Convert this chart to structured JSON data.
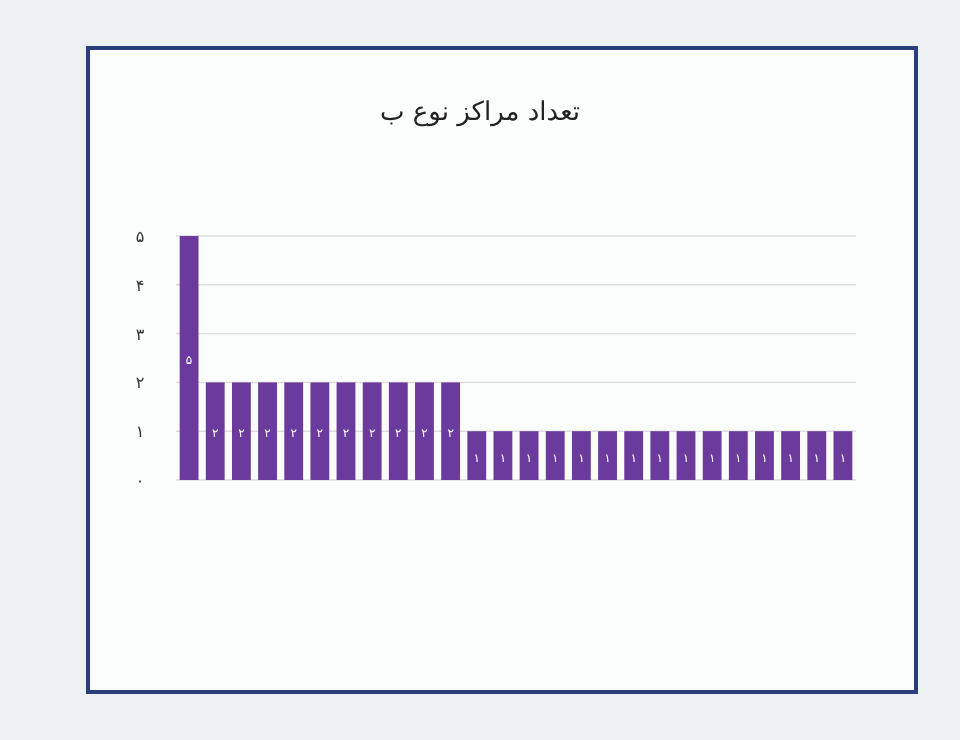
{
  "chart_data": {
    "type": "bar",
    "title": "تعداد مراکز نوع ب",
    "categories": [
      null,
      null,
      null,
      null,
      null,
      null,
      null,
      null,
      null,
      null,
      null,
      null,
      null,
      null,
      null,
      null,
      null,
      null,
      null,
      null,
      null,
      null,
      null,
      null,
      null,
      null
    ],
    "values": [
      5,
      2,
      2,
      2,
      2,
      2,
      2,
      2,
      2,
      2,
      2,
      1,
      1,
      1,
      1,
      1,
      1,
      1,
      1,
      1,
      1,
      1,
      1,
      1,
      1,
      1
    ],
    "value_labels": [
      "۵",
      "۲",
      "۲",
      "۲",
      "۲",
      "۲",
      "۲",
      "۲",
      "۲",
      "۲",
      "۲",
      "۱",
      "۱",
      "۱",
      "۱",
      "۱",
      "۱",
      "۱",
      "۱",
      "۱",
      "۱",
      "۱",
      "۱",
      "۱",
      "۱",
      "۱"
    ],
    "color": "#6a3a9c",
    "ylim": [
      0,
      5
    ],
    "yticks": [
      {
        "value": 0,
        "label": "۰"
      },
      {
        "value": 1,
        "label": "۱"
      },
      {
        "value": 2,
        "label": "۲"
      },
      {
        "value": 3,
        "label": "۳"
      },
      {
        "value": 4,
        "label": "۴"
      },
      {
        "value": 5,
        "label": "۵"
      }
    ],
    "grid": "y"
  }
}
